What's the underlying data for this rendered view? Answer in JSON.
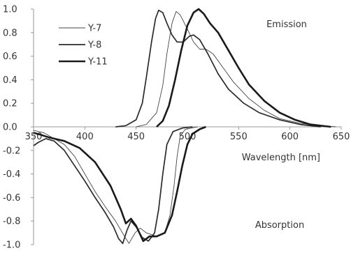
{
  "chart_data": {
    "type": "line",
    "xlabel": "Wavelength [nm]",
    "ylabel": "",
    "xlim": [
      350,
      650
    ],
    "ylim": [
      -1.0,
      1.0
    ],
    "x_ticks": [
      "350",
      "400",
      "450",
      "500",
      "550",
      "600",
      "650"
    ],
    "y_ticks": [
      "1.0",
      "0.8",
      "0.6",
      "0.4",
      "0.2",
      "0.0",
      "-0.2",
      "-0.4",
      "-0.6",
      "-0.8",
      "-1.0"
    ],
    "annotations": {
      "emission": "Emission",
      "absorption": "Absorption"
    },
    "grid": false,
    "legend_position": "top-left",
    "series": [
      {
        "name": "Y-7",
        "style": "thin",
        "emission": [
          [
            450,
            0.0
          ],
          [
            460,
            0.02
          ],
          [
            470,
            0.12
          ],
          [
            476,
            0.35
          ],
          [
            480,
            0.62
          ],
          [
            485,
            0.88
          ],
          [
            489,
            0.98
          ],
          [
            493,
            0.95
          ],
          [
            500,
            0.83
          ],
          [
            506,
            0.72
          ],
          [
            512,
            0.66
          ],
          [
            518,
            0.66
          ],
          [
            525,
            0.62
          ],
          [
            535,
            0.5
          ],
          [
            545,
            0.38
          ],
          [
            560,
            0.24
          ],
          [
            575,
            0.14
          ],
          [
            590,
            0.07
          ],
          [
            610,
            0.03
          ],
          [
            630,
            0.01
          ],
          [
            645,
            0.0
          ]
        ],
        "absorption": [
          [
            350,
            -0.03
          ],
          [
            360,
            -0.05
          ],
          [
            370,
            -0.1
          ],
          [
            380,
            -0.15
          ],
          [
            390,
            -0.25
          ],
          [
            400,
            -0.4
          ],
          [
            410,
            -0.55
          ],
          [
            420,
            -0.68
          ],
          [
            430,
            -0.8
          ],
          [
            438,
            -0.92
          ],
          [
            443,
            -0.99
          ],
          [
            449,
            -0.9
          ],
          [
            454,
            -0.86
          ],
          [
            460,
            -0.9
          ],
          [
            470,
            -0.93
          ],
          [
            478,
            -0.9
          ],
          [
            483,
            -0.75
          ],
          [
            487,
            -0.5
          ],
          [
            490,
            -0.25
          ],
          [
            493,
            -0.08
          ],
          [
            498,
            -0.02
          ],
          [
            510,
            0.0
          ]
        ]
      },
      {
        "name": "Y-8",
        "style": "medium",
        "emission": [
          [
            430,
            0.0
          ],
          [
            440,
            0.01
          ],
          [
            450,
            0.06
          ],
          [
            456,
            0.2
          ],
          [
            460,
            0.42
          ],
          [
            465,
            0.72
          ],
          [
            469,
            0.92
          ],
          [
            472,
            0.99
          ],
          [
            476,
            0.97
          ],
          [
            480,
            0.88
          ],
          [
            485,
            0.78
          ],
          [
            490,
            0.72
          ],
          [
            496,
            0.72
          ],
          [
            502,
            0.77
          ],
          [
            506,
            0.78
          ],
          [
            512,
            0.74
          ],
          [
            520,
            0.62
          ],
          [
            530,
            0.45
          ],
          [
            540,
            0.32
          ],
          [
            555,
            0.2
          ],
          [
            570,
            0.12
          ],
          [
            590,
            0.06
          ],
          [
            610,
            0.02
          ],
          [
            630,
            0.0
          ]
        ],
        "absorption": [
          [
            350,
            -0.16
          ],
          [
            355,
            -0.13
          ],
          [
            362,
            -0.1
          ],
          [
            370,
            -0.12
          ],
          [
            380,
            -0.2
          ],
          [
            390,
            -0.33
          ],
          [
            400,
            -0.46
          ],
          [
            410,
            -0.6
          ],
          [
            420,
            -0.73
          ],
          [
            428,
            -0.85
          ],
          [
            433,
            -0.95
          ],
          [
            437,
            -0.99
          ],
          [
            441,
            -0.88
          ],
          [
            445,
            -0.8
          ],
          [
            450,
            -0.85
          ],
          [
            456,
            -0.94
          ],
          [
            462,
            -0.97
          ],
          [
            468,
            -0.9
          ],
          [
            472,
            -0.7
          ],
          [
            476,
            -0.4
          ],
          [
            480,
            -0.15
          ],
          [
            486,
            -0.04
          ],
          [
            495,
            -0.01
          ],
          [
            505,
            0.0
          ]
        ]
      },
      {
        "name": "Y-11",
        "style": "thick",
        "emission": [
          [
            470,
            0.0
          ],
          [
            476,
            0.05
          ],
          [
            482,
            0.18
          ],
          [
            488,
            0.4
          ],
          [
            494,
            0.65
          ],
          [
            500,
            0.86
          ],
          [
            506,
            0.97
          ],
          [
            511,
            1.0
          ],
          [
            516,
            0.96
          ],
          [
            522,
            0.88
          ],
          [
            530,
            0.8
          ],
          [
            540,
            0.65
          ],
          [
            550,
            0.5
          ],
          [
            560,
            0.36
          ],
          [
            575,
            0.22
          ],
          [
            590,
            0.12
          ],
          [
            605,
            0.06
          ],
          [
            620,
            0.02
          ],
          [
            640,
            0.0
          ]
        ],
        "absorption": [
          [
            350,
            -0.05
          ],
          [
            358,
            -0.07
          ],
          [
            365,
            -0.09
          ],
          [
            370,
            -0.1
          ],
          [
            380,
            -0.12
          ],
          [
            395,
            -0.18
          ],
          [
            410,
            -0.3
          ],
          [
            425,
            -0.5
          ],
          [
            435,
            -0.7
          ],
          [
            440,
            -0.82
          ],
          [
            445,
            -0.78
          ],
          [
            450,
            -0.84
          ],
          [
            457,
            -0.97
          ],
          [
            463,
            -0.93
          ],
          [
            470,
            -0.93
          ],
          [
            478,
            -0.9
          ],
          [
            485,
            -0.75
          ],
          [
            490,
            -0.55
          ],
          [
            495,
            -0.33
          ],
          [
            500,
            -0.15
          ],
          [
            505,
            -0.06
          ],
          [
            512,
            -0.02
          ],
          [
            518,
            0.0
          ]
        ]
      }
    ]
  }
}
